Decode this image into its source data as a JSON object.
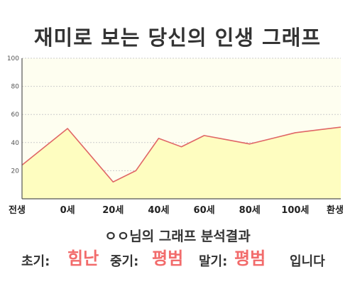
{
  "title": "재미로 보는 당신의 인생 그래프",
  "summary": {
    "line1": "ㅇㅇ님의 그래프 분석결과",
    "early_label": "초기:",
    "early_value": "힘난",
    "mid_label": "중기:",
    "mid_value": "평범",
    "late_label": "말기:",
    "late_value": "평범",
    "suffix": "입니다"
  },
  "colors": {
    "line": "#e06666",
    "fill": "#fefdc0",
    "plot_bg": "#fefef0",
    "accent_text": "#f26b6b"
  },
  "chart_data": {
    "type": "area",
    "title": "재미로 보는 당신의 인생 그래프",
    "xlabel": "",
    "ylabel": "",
    "ylim": [
      0,
      100
    ],
    "yticks": [
      20,
      40,
      60,
      80,
      100
    ],
    "categories": [
      "전생",
      "0세",
      "20세",
      "40세",
      "60세",
      "80세",
      "100세",
      "환생"
    ],
    "series": [
      {
        "x": [
          0,
          1,
          2,
          2.5,
          3,
          3.5,
          4,
          4.5,
          5,
          5.5,
          6,
          6.5,
          7
        ],
        "values": [
          24,
          50,
          12,
          20,
          43,
          37,
          45,
          42,
          39,
          43,
          47,
          49,
          51
        ]
      }
    ],
    "grid": true,
    "legend": "none"
  }
}
